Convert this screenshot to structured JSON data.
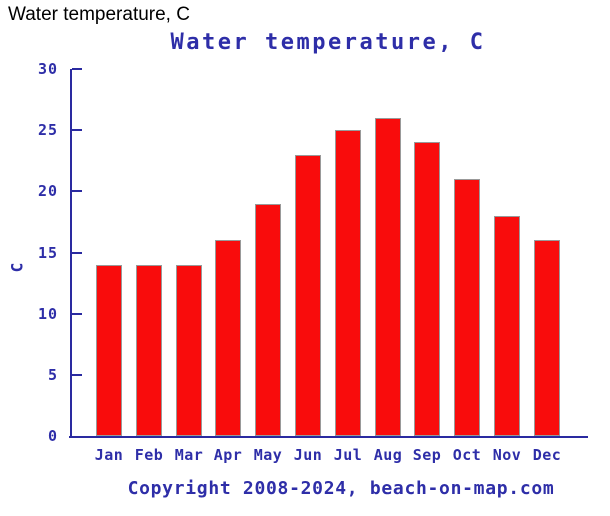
{
  "header": {
    "title": "Water temperature, C"
  },
  "chart_data": {
    "type": "bar",
    "title": "Water temperature, C",
    "categories": [
      "Jan",
      "Feb",
      "Mar",
      "Apr",
      "May",
      "Jun",
      "Jul",
      "Aug",
      "Sep",
      "Oct",
      "Nov",
      "Dec"
    ],
    "values": [
      14,
      14,
      14,
      16,
      19,
      23,
      25,
      26,
      24,
      21,
      18,
      16
    ],
    "xlabel": "",
    "ylabel": "C",
    "ylim": [
      0,
      30
    ],
    "yticks": [
      0,
      5,
      10,
      15,
      20,
      25,
      30
    ],
    "grid": false,
    "legend": false,
    "copyright": "Copyright 2008-2024, beach-on-map.com",
    "colors": {
      "bar_fill": "#F90C0C",
      "bar_border": "#999999",
      "axis": "#2A2AA0",
      "text": "#2E2EA8",
      "page_title": "#000000"
    }
  }
}
